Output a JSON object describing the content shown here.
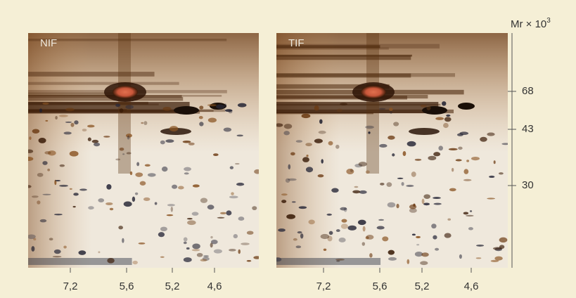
{
  "panels": [
    {
      "label": "NIF"
    },
    {
      "label": "TIF"
    }
  ],
  "y_axis": {
    "label": "Mr × 10",
    "superscript": "3",
    "ticks": [
      "68",
      "43",
      "30"
    ]
  },
  "x_axis": {
    "ticks": [
      "7,2",
      "5,6",
      "5,2",
      "4,6"
    ]
  }
}
